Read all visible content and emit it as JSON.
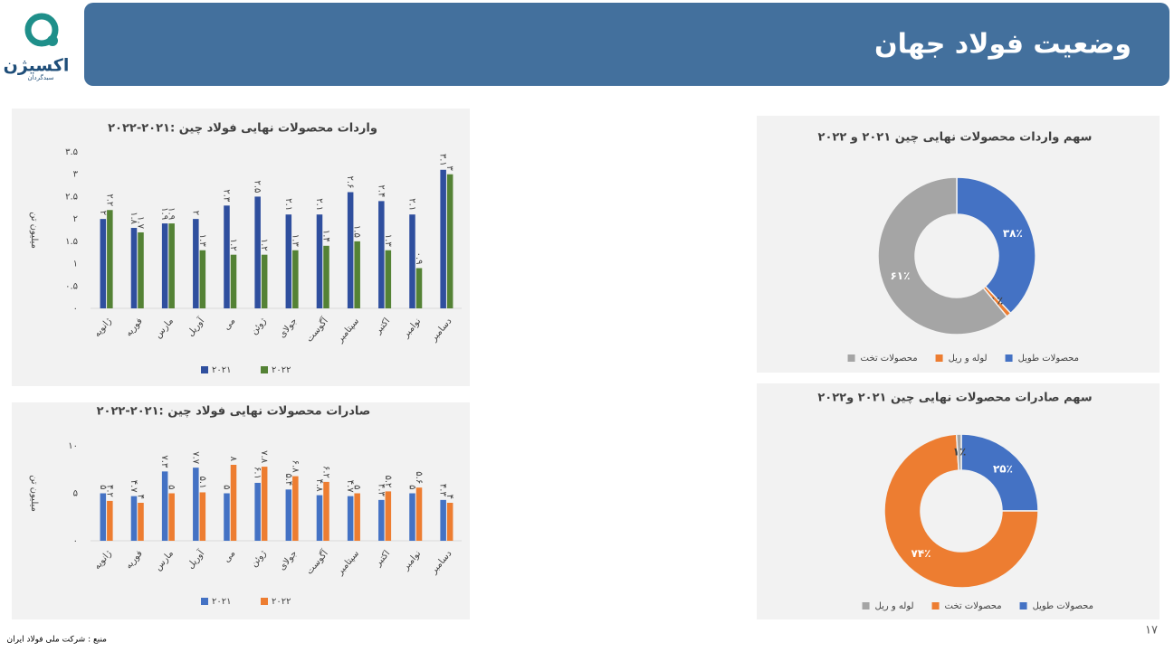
{
  "header": {
    "title": "وضعیت فولاد جهان"
  },
  "logo": {
    "name": "اکسیژن",
    "subtitle": "سبدگردان"
  },
  "chart_data": [
    {
      "type": "bar",
      "title": "واردات محصولات نهایی فولاد چین :۲۰۲۱-۲۰۲۲",
      "y_label": "میلیون تن",
      "categories": [
        "ژانویه",
        "فوریه",
        "مارس",
        "آوریل",
        "می",
        "ژوئن",
        "جولای",
        "آگوست",
        "سپتامبر",
        "اکتبر",
        "نوامبر",
        "دسامبر"
      ],
      "series": [
        {
          "name": "۲۰۲۱",
          "color": "#2f4f9e",
          "values": [
            2,
            1.8,
            1.9,
            2,
            2.3,
            2.5,
            2.1,
            2.1,
            2.6,
            2.4,
            2.1,
            3.1
          ],
          "value_labels": [
            "۲",
            "۱.۸",
            "۱.۹",
            "۲",
            "۲.۳",
            "۲.۵",
            "۲.۱",
            "۲.۱",
            "۲.۶",
            "۲.۴",
            "۲.۱",
            "۳.۱"
          ]
        },
        {
          "name": "۲۰۲۲",
          "color": "#548235",
          "values": [
            2.2,
            1.7,
            1.9,
            1.3,
            1.2,
            1.2,
            1.3,
            1.4,
            1.5,
            1.3,
            0.9,
            3
          ],
          "value_labels": [
            "۲.۲",
            "۱.۷",
            "۱.۹",
            "۱.۳",
            "۱.۲",
            "۱.۲",
            "۱.۳",
            "۱.۴",
            "۱.۵",
            "۱.۳",
            "۰.۹",
            "۳"
          ]
        }
      ],
      "ylim": [
        0,
        3.5
      ],
      "yticks": [
        {
          "value": 0,
          "label": "۰"
        },
        {
          "value": 0.5,
          "label": "۰.۵"
        },
        {
          "value": 1,
          "label": "۱"
        },
        {
          "value": 1.5,
          "label": "۱.۵"
        },
        {
          "value": 2,
          "label": "۲"
        },
        {
          "value": 2.5,
          "label": "۲.۵"
        },
        {
          "value": 3,
          "label": "۳"
        },
        {
          "value": 3.5,
          "label": "۳.۵"
        }
      ],
      "grid": false,
      "legend": "bottom"
    },
    {
      "type": "bar",
      "title": "صادرات محصولات نهایی فولاد چین :۲۰۲۱-۲۰۲۲",
      "y_label": "میلیون تن",
      "categories": [
        "ژانویه",
        "فوریه",
        "مارس",
        "آوریل",
        "می",
        "ژوئن",
        "جولای",
        "آگوست",
        "سپتامبر",
        "اکتبر",
        "نوامبر",
        "دسامبر"
      ],
      "series": [
        {
          "name": "۲۰۲۱",
          "color": "#4472c4",
          "values": [
            5,
            4.7,
            7.3,
            7.7,
            5,
            6.1,
            5.4,
            4.8,
            4.7,
            4.3,
            5,
            4.3
          ],
          "value_labels": [
            "۵",
            "۴.۷",
            "۷.۳",
            "۷.۷",
            "۵",
            "۶.۱",
            "۵.۴",
            "۴.۸",
            "۴.۷",
            "۴.۳",
            "۵",
            "۴.۳"
          ]
        },
        {
          "name": "۲۰۲۲",
          "color": "#ed7d31",
          "values": [
            4.2,
            4,
            5,
            5.1,
            8,
            7.8,
            6.8,
            6.2,
            5,
            5.2,
            5.6,
            4
          ],
          "value_labels": [
            "۴.۲",
            "۴",
            "۵",
            "۵.۱",
            "۸",
            "۷.۸",
            "۶.۸",
            "۶.۲",
            "۵",
            "۵.۲",
            "۵.۶",
            "۴"
          ]
        }
      ],
      "ylim": [
        0,
        10
      ],
      "yticks": [
        {
          "value": 0,
          "label": "۰"
        },
        {
          "value": 5,
          "label": "۵"
        },
        {
          "value": 10,
          "label": "۱۰"
        }
      ],
      "grid": false,
      "legend": "bottom"
    },
    {
      "type": "donut",
      "title": "سهم واردات محصولات نهایی چین ۲۰۲۱ و ۲۰۲۲",
      "categories": [
        "محصولات طویل",
        "لوله و ریل",
        "محصولات تخت"
      ],
      "values": [
        38,
        1,
        61
      ],
      "value_labels": [
        "۳۸٪",
        "۱٪",
        "۶۱٪"
      ],
      "colors": [
        "#4472c4",
        "#ed7d31",
        "#a5a5a5"
      ],
      "legend": "bottom"
    },
    {
      "type": "donut",
      "title": "سهم صادرات محصولات نهایی چین ۲۰۲۱ و۲۰۲۲",
      "categories": [
        "محصولات طویل",
        "محصولات تخت",
        "لوله و ریل"
      ],
      "values": [
        25,
        74,
        1
      ],
      "value_labels": [
        "۲۵٪",
        "۷۴٪",
        "۱٪"
      ],
      "colors": [
        "#4472c4",
        "#ed7d31",
        "#a5a5a5"
      ],
      "legend": "bottom"
    }
  ],
  "footer": {
    "source": "منبع : شرکت ملی فولاد ایران",
    "page": "۱۷"
  }
}
